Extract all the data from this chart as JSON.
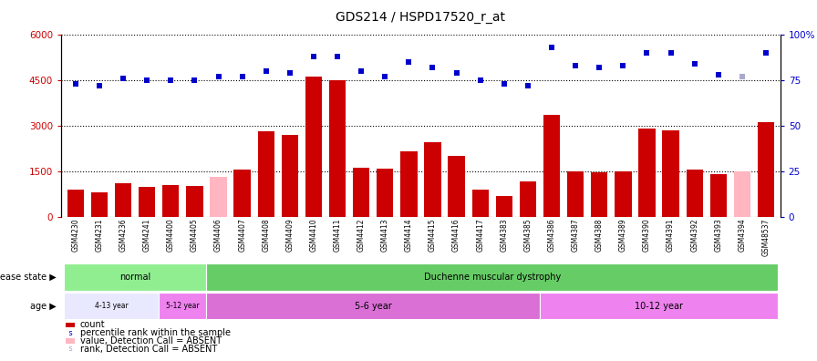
{
  "title": "GDS214 / HSPD17520_r_at",
  "samples": [
    "GSM4230",
    "GSM4231",
    "GSM4236",
    "GSM4241",
    "GSM4400",
    "GSM4405",
    "GSM4406",
    "GSM4407",
    "GSM4408",
    "GSM4409",
    "GSM4410",
    "GSM4411",
    "GSM4412",
    "GSM4413",
    "GSM4414",
    "GSM4415",
    "GSM4416",
    "GSM4417",
    "GSM4383",
    "GSM4385",
    "GSM4386",
    "GSM4387",
    "GSM4388",
    "GSM4389",
    "GSM4390",
    "GSM4391",
    "GSM4392",
    "GSM4393",
    "GSM4394",
    "GSM48537"
  ],
  "counts": [
    900,
    790,
    1100,
    980,
    1050,
    1020,
    1300,
    1550,
    2800,
    2700,
    4600,
    4500,
    1600,
    1580,
    2150,
    2450,
    2000,
    890,
    680,
    1150,
    3350,
    1500,
    1450,
    1500,
    2900,
    2850,
    1550,
    1390,
    1480,
    3100
  ],
  "percentile": [
    73,
    72,
    76,
    75,
    75,
    75,
    77,
    77,
    80,
    79,
    88,
    88,
    80,
    77,
    85,
    82,
    79,
    75,
    73,
    72,
    93,
    83,
    82,
    83,
    90,
    90,
    84,
    78,
    77,
    90
  ],
  "absent_bar": [
    false,
    false,
    false,
    false,
    false,
    false,
    true,
    false,
    false,
    false,
    false,
    false,
    false,
    false,
    false,
    false,
    false,
    false,
    false,
    false,
    false,
    false,
    false,
    false,
    false,
    false,
    false,
    false,
    true,
    false
  ],
  "absent_rank": [
    false,
    false,
    false,
    false,
    false,
    false,
    false,
    false,
    false,
    false,
    false,
    false,
    false,
    false,
    false,
    false,
    false,
    false,
    false,
    false,
    false,
    false,
    false,
    false,
    false,
    false,
    false,
    false,
    true,
    false
  ],
  "ylim_left": [
    0,
    6000
  ],
  "ylim_right": [
    0,
    100
  ],
  "yticks_left": [
    0,
    1500,
    3000,
    4500,
    6000
  ],
  "ytick_labels_left": [
    "0",
    "1500",
    "3000",
    "4500",
    "6000"
  ],
  "yticks_right": [
    0,
    25,
    50,
    75,
    100
  ],
  "ytick_labels_right": [
    "0",
    "25",
    "50",
    "75",
    "100%"
  ],
  "bar_color": "#CC0000",
  "bar_absent_color": "#FFB6C1",
  "rank_color": "#0000CC",
  "rank_absent_color": "#AAAACC",
  "disease_state_groups": [
    {
      "label": "normal",
      "start": 0,
      "end": 6,
      "color": "#90EE90"
    },
    {
      "label": "Duchenne muscular dystrophy",
      "start": 6,
      "end": 30,
      "color": "#66CC66"
    }
  ],
  "age_groups": [
    {
      "label": "4-13 year",
      "start": 0,
      "end": 4,
      "color": "#E8E8FF"
    },
    {
      "label": "5-12 year",
      "start": 4,
      "end": 6,
      "color": "#EE82EE"
    },
    {
      "label": "5-6 year",
      "start": 6,
      "end": 20,
      "color": "#DA70D6"
    },
    {
      "label": "10-12 year",
      "start": 20,
      "end": 30,
      "color": "#EE82EE"
    }
  ],
  "legend_items": [
    {
      "label": "count",
      "color": "#CC0000",
      "type": "bar"
    },
    {
      "label": "percentile rank within the sample",
      "color": "#0000CC",
      "type": "square"
    },
    {
      "label": "value, Detection Call = ABSENT",
      "color": "#FFB6C1",
      "type": "bar"
    },
    {
      "label": "rank, Detection Call = ABSENT",
      "color": "#AAAACC",
      "type": "square"
    }
  ],
  "fig_width": 8.96,
  "fig_height": 3.96,
  "fig_dpi": 100
}
